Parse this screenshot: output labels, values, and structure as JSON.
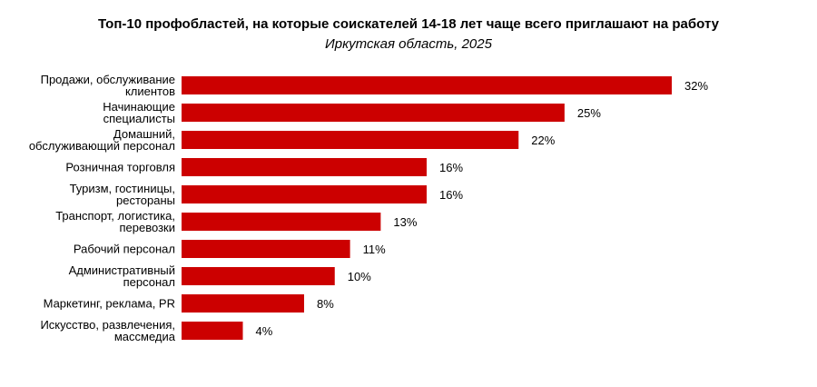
{
  "chart_data": {
    "type": "bar",
    "orientation": "horizontal",
    "title": "Топ-10 профобластей, на которые соискателей 14-18 лет чаще всего приглашают на работу",
    "subtitle": "Иркутская область, 2025",
    "bar_color": "#cc0000",
    "value_suffix": "%",
    "categories": [
      [
        "Продажи, обслуживание",
        "клиентов"
      ],
      [
        "Начинающие",
        "специалисты"
      ],
      [
        "Домашний,",
        "обслуживающий персонал"
      ],
      [
        "Розничная торговля"
      ],
      [
        "Туризм, гостиницы,",
        "рестораны"
      ],
      [
        "Транспорт, логистика,",
        "перевозки"
      ],
      [
        "Рабочий персонал"
      ],
      [
        "Административный",
        "персонал"
      ],
      [
        "Маркетинг, реклама, PR"
      ],
      [
        "Искусство, развлечения,",
        "массмедиа"
      ]
    ],
    "values": [
      32,
      25,
      22,
      16,
      16,
      13,
      11,
      10,
      8,
      4
    ],
    "value_labels": [
      "32%",
      "25%",
      "22%",
      "16%",
      "16%",
      "13%",
      "11%",
      "10%",
      "8%",
      "4%"
    ],
    "xlim": [
      0,
      32
    ],
    "grid": false,
    "legend": "none"
  }
}
